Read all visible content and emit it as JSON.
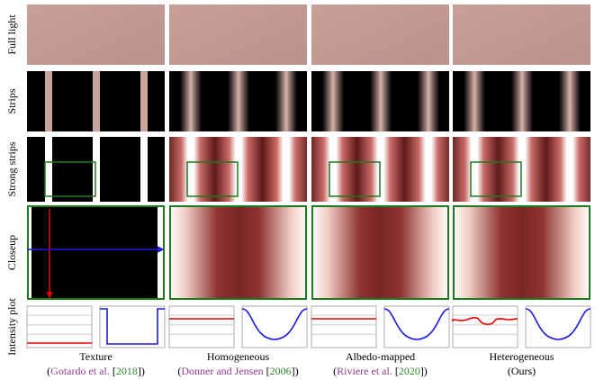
{
  "row_labels": [
    "Full light",
    "Strips",
    "Strong strips",
    "Closeup",
    "Intensity plot"
  ],
  "columns": [
    {
      "title": "Texture",
      "citation": [
        {
          "text": "(",
          "color": "#000000"
        },
        {
          "text": "Gotardo et al.",
          "color": "#8e3b8e"
        },
        {
          "text": " [",
          "color": "#000000"
        },
        {
          "text": "2018",
          "color": "#2a8a2a"
        },
        {
          "text": "])",
          "color": "#000000"
        }
      ]
    },
    {
      "title": "Homogeneous",
      "citation": [
        {
          "text": "(",
          "color": "#000000"
        },
        {
          "text": "Donner and Jensen",
          "color": "#8e3b8e"
        },
        {
          "text": " [",
          "color": "#000000"
        },
        {
          "text": "2006",
          "color": "#2a8a2a"
        },
        {
          "text": "])",
          "color": "#000000"
        }
      ]
    },
    {
      "title": "Albedo-mapped",
      "citation": [
        {
          "text": "(",
          "color": "#000000"
        },
        {
          "text": "Riviere et al.",
          "color": "#8e3b8e"
        },
        {
          "text": " [",
          "color": "#000000"
        },
        {
          "text": "2020",
          "color": "#2a8a2a"
        },
        {
          "text": "])",
          "color": "#000000"
        }
      ]
    },
    {
      "title": "Heterogeneous",
      "citation": [
        {
          "text": "(Ours)",
          "color": "#000000"
        }
      ]
    }
  ]
}
